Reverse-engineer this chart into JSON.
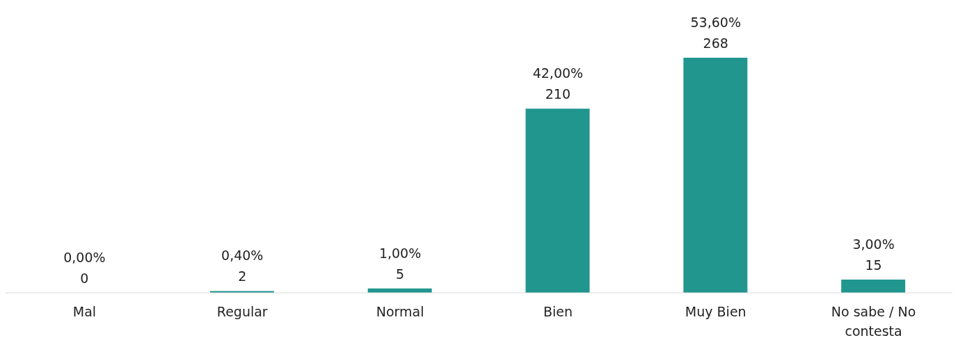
{
  "chart_data": {
    "type": "bar",
    "categories": [
      "Mal",
      "Regular",
      "Normal",
      "Bien",
      "Muy Bien",
      "No sabe / No contesta"
    ],
    "values": [
      0,
      2,
      5,
      210,
      268,
      15
    ],
    "value_labels": [
      "0,00%\n0",
      "0,40%\n2",
      "1,00%\n5",
      "42,00%\n210",
      "53,60%\n268",
      "3,00%\n15"
    ],
    "color": "#21968f",
    "grid": false,
    "legend": false
  }
}
